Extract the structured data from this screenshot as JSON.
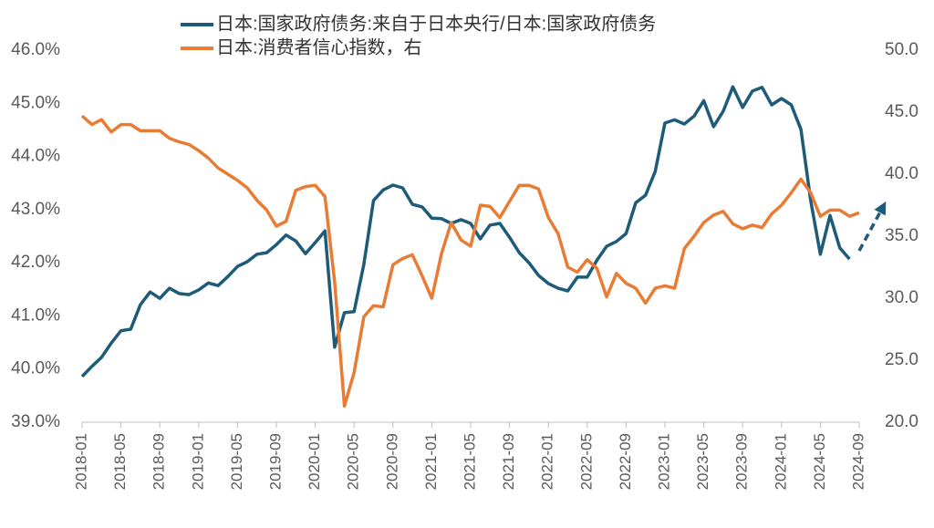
{
  "chart_data": {
    "type": "line",
    "categories": [
      "2018-01",
      null,
      null,
      null,
      "2018-05",
      null,
      null,
      null,
      "2018-09",
      null,
      null,
      null,
      "2019-01",
      null,
      null,
      null,
      "2019-05",
      null,
      null,
      null,
      "2019-09",
      null,
      null,
      null,
      "2020-01",
      null,
      null,
      null,
      "2020-05",
      null,
      null,
      null,
      "2020-09",
      null,
      null,
      null,
      "2021-01",
      null,
      null,
      null,
      "2021-05",
      null,
      null,
      null,
      "2021-09",
      null,
      null,
      null,
      "2022-01",
      null,
      null,
      null,
      "2022-05",
      null,
      null,
      null,
      "2022-09",
      null,
      null,
      null,
      "2023-01",
      null,
      null,
      null,
      "2023-05",
      null,
      null,
      null,
      "2023-09",
      null,
      null,
      null,
      "2024-01",
      null,
      null,
      null,
      "2024-05",
      null,
      null,
      null,
      "2024-09"
    ],
    "series": [
      {
        "name": "日本:国家政府债务:来自于日本央行/日本:国家政府债务",
        "color": "#1d5b79",
        "values": [
          39.86,
          40.05,
          40.22,
          40.49,
          40.72,
          40.75,
          41.21,
          41.45,
          41.33,
          41.52,
          41.42,
          41.4,
          41.49,
          41.62,
          41.57,
          41.74,
          41.93,
          42.02,
          42.16,
          42.19,
          42.34,
          42.52,
          42.41,
          42.17,
          42.38,
          42.6,
          40.41,
          41.06,
          41.08,
          41.97,
          43.17,
          43.37,
          43.46,
          43.41,
          43.1,
          43.05,
          42.84,
          42.83,
          42.74,
          42.81,
          42.74,
          42.45,
          42.71,
          42.74,
          42.48,
          42.19,
          42.0,
          41.76,
          41.61,
          41.52,
          41.47,
          41.73,
          41.73,
          42.05,
          42.31,
          42.4,
          42.55,
          43.13,
          43.27,
          43.72,
          44.63,
          44.69,
          44.61,
          44.76,
          45.05,
          44.56,
          44.85,
          45.31,
          44.92,
          45.23,
          45.3,
          44.97,
          45.09,
          44.97,
          44.51,
          43.17,
          42.16,
          42.89,
          42.28,
          42.07,
          null
        ]
      },
      {
        "name": "日本:消费者信心指数，右",
        "color": "#e97c35",
        "axis": "y2",
        "values": [
          44.7,
          44.0,
          44.4,
          43.4,
          44.0,
          44.0,
          43.5,
          43.5,
          43.5,
          42.9,
          42.6,
          42.4,
          41.9,
          41.3,
          40.5,
          40.0,
          39.5,
          38.9,
          37.9,
          37.1,
          35.8,
          36.2,
          38.7,
          39.0,
          39.1,
          38.2,
          31.3,
          21.3,
          24.0,
          28.5,
          29.4,
          29.3,
          32.7,
          33.2,
          33.5,
          31.8,
          30.0,
          33.6,
          36.1,
          34.7,
          34.2,
          37.5,
          37.4,
          36.5,
          37.8,
          39.1,
          39.1,
          38.8,
          36.5,
          35.2,
          32.5,
          32.1,
          33.1,
          32.4,
          30.1,
          32.0,
          31.2,
          30.8,
          29.6,
          30.8,
          31.0,
          30.8,
          34.0,
          35.0,
          36.1,
          36.7,
          37.0,
          36.0,
          35.6,
          35.9,
          35.7,
          36.8,
          37.5,
          38.5,
          39.6,
          38.5,
          36.6,
          37.1,
          37.1,
          36.6,
          36.9
        ]
      }
    ],
    "ylim": [
      39,
      46
    ],
    "yticks": [
      {
        "value": 39,
        "label": "39.0%"
      },
      {
        "value": 40,
        "label": "40.0%"
      },
      {
        "value": 41,
        "label": "41.0%"
      },
      {
        "value": 42,
        "label": "42.0%"
      },
      {
        "value": 43,
        "label": "43.0%"
      },
      {
        "value": 44,
        "label": "44.0%"
      },
      {
        "value": 45,
        "label": "45.0%"
      },
      {
        "value": 46,
        "label": "46.0%"
      }
    ],
    "y2lim": [
      20,
      50
    ],
    "y2ticks": [
      {
        "value": 20,
        "label": "20.0"
      },
      {
        "value": 25,
        "label": "25.0"
      },
      {
        "value": 30,
        "label": "30.0"
      },
      {
        "value": 35,
        "label": "35.0"
      },
      {
        "value": 40,
        "label": "40.0"
      },
      {
        "value": 45,
        "label": "45.0"
      },
      {
        "value": 50,
        "label": "50.0"
      }
    ],
    "grid": false,
    "legend": "top"
  }
}
